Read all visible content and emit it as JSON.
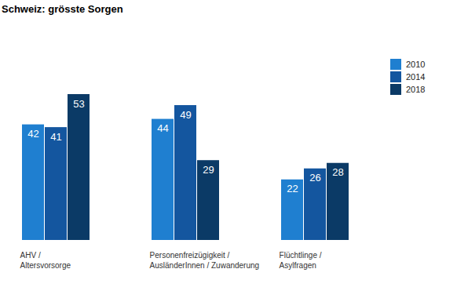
{
  "chart_data": {
    "type": "bar",
    "title": "Schweiz: grösste Sorgen",
    "categories": [
      "AHV /\nAltersvorsorge",
      "Personenfreizügigkeit /\nAusländerInnen / Zuwanderung",
      "Flüchtlinge /\nAsylfragen"
    ],
    "series": [
      {
        "name": "2010",
        "color": "#1f7fd0",
        "values": [
          42,
          44,
          22
        ]
      },
      {
        "name": "2014",
        "color": "#14569f",
        "values": [
          41,
          49,
          26
        ]
      },
      {
        "name": "2018",
        "color": "#0b3a66",
        "values": [
          53,
          29,
          28
        ]
      }
    ],
    "ylim": [
      0,
      53
    ],
    "data_labels": true,
    "tick_labels": "x",
    "legend": "top right"
  }
}
